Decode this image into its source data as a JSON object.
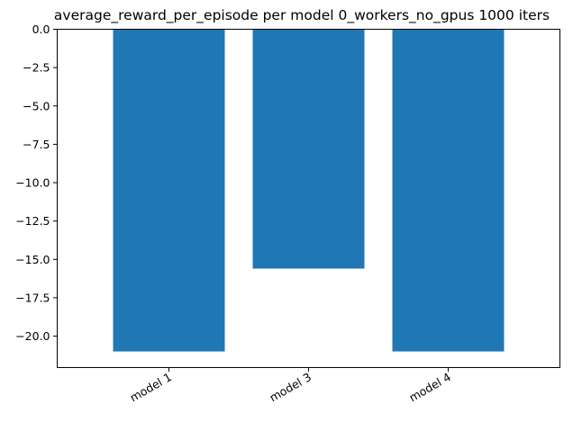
{
  "chart_data": {
    "type": "bar",
    "title": "average_reward_per_episode per model 0_workers_no_gpus 1000 iters",
    "xlabel": "",
    "ylabel": "",
    "categories": [
      "model 1",
      "model 3",
      "model 4"
    ],
    "values": [
      -21.0,
      -15.6,
      -21.0
    ],
    "ylim": [
      -22.05,
      0.0
    ],
    "yticks": [
      0.0,
      -2.5,
      -5.0,
      -7.5,
      -10.0,
      -12.5,
      -15.0,
      -17.5,
      -20.0
    ],
    "ytick_labels": [
      "0.0",
      "−2.5",
      "−5.0",
      "−7.5",
      "−10.0",
      "−12.5",
      "−15.0",
      "−17.5",
      "−20.0"
    ],
    "bar_color": "#1f77b4",
    "grid": false,
    "legend": "none",
    "xtick_rotation": "30deg"
  }
}
